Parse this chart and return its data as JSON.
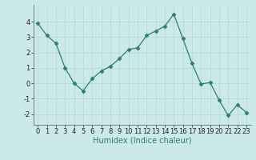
{
  "x": [
    0,
    1,
    2,
    3,
    4,
    5,
    6,
    7,
    8,
    9,
    10,
    11,
    12,
    13,
    14,
    15,
    16,
    17,
    18,
    19,
    20,
    21,
    22,
    23
  ],
  "y": [
    3.9,
    3.1,
    2.6,
    1.0,
    -0.0,
    -0.5,
    0.3,
    0.8,
    1.1,
    1.6,
    2.2,
    2.3,
    3.1,
    3.4,
    3.7,
    4.5,
    2.9,
    1.3,
    -0.05,
    0.05,
    -1.1,
    -2.1,
    -1.4,
    -1.9
  ],
  "line_color": "#2e7d6e",
  "marker": "D",
  "markersize": 2.5,
  "background_color": "#cce9ea",
  "grid_color": "#b8d8d8",
  "xlabel": "Humidex (Indice chaleur)",
  "xlabel_fontsize": 7,
  "tick_fontsize": 6,
  "ylim": [
    -2.7,
    5.1
  ],
  "xlim": [
    -0.5,
    23.5
  ],
  "yticks": [
    -2,
    -1,
    0,
    1,
    2,
    3,
    4
  ],
  "xticks": [
    0,
    1,
    2,
    3,
    4,
    5,
    6,
    7,
    8,
    9,
    10,
    11,
    12,
    13,
    14,
    15,
    16,
    17,
    18,
    19,
    20,
    21,
    22,
    23
  ]
}
